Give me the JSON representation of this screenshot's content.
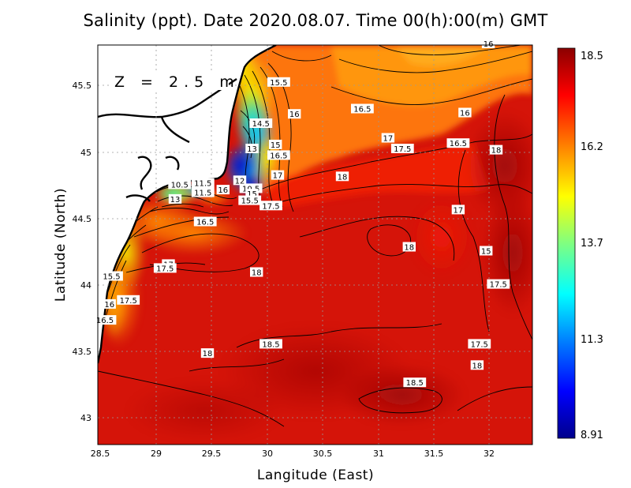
{
  "title": "Salinity (ppt). Date 2020.08.07. Time 00(h):00(m) GMT",
  "depth_label": "Z = 2.5 m",
  "x_axis": {
    "label": "Langitude (East)",
    "ticks": [
      "28.5",
      "29",
      "29.5",
      "30",
      "30.5",
      "31",
      "31.5",
      "32"
    ]
  },
  "y_axis": {
    "label": "Latitude (North)",
    "ticks": [
      "43",
      "43.5",
      "44",
      "44.5",
      "45",
      "45.5"
    ]
  },
  "colorbar": {
    "ticks": [
      "18.5",
      "16.2",
      "13.7",
      "11.3",
      "8.91"
    ],
    "min": 8.91,
    "max": 18.5,
    "colors": [
      "#00008b",
      "#0000ff",
      "#0080ff",
      "#00ffff",
      "#80ff80",
      "#ffff00",
      "#ff8000",
      "#ff0000",
      "#8b0000"
    ]
  },
  "contour_labels": [
    {
      "text": "16",
      "lon": 31.98,
      "lat": 45.82
    },
    {
      "text": "15.5",
      "lon": 30.1,
      "lat": 45.53
    },
    {
      "text": "16.5",
      "lon": 30.85,
      "lat": 45.33
    },
    {
      "text": "16",
      "lon": 31.77,
      "lat": 45.3
    },
    {
      "text": "16",
      "lon": 30.24,
      "lat": 45.29
    },
    {
      "text": "14.5",
      "lon": 29.94,
      "lat": 45.22
    },
    {
      "text": "17",
      "lon": 31.08,
      "lat": 45.11
    },
    {
      "text": "16.5",
      "lon": 31.71,
      "lat": 45.07
    },
    {
      "text": "15",
      "lon": 30.07,
      "lat": 45.06
    },
    {
      "text": "13",
      "lon": 29.86,
      "lat": 45.03
    },
    {
      "text": "17.5",
      "lon": 31.21,
      "lat": 45.03
    },
    {
      "text": "18",
      "lon": 32.05,
      "lat": 45.02
    },
    {
      "text": "16.5",
      "lon": 30.1,
      "lat": 44.98
    },
    {
      "text": "18",
      "lon": 30.67,
      "lat": 44.82
    },
    {
      "text": "17",
      "lon": 30.09,
      "lat": 44.83
    },
    {
      "text": "12",
      "lon": 29.75,
      "lat": 44.79
    },
    {
      "text": "10.5",
      "lon": 29.21,
      "lat": 44.76
    },
    {
      "text": "11.5",
      "lon": 29.42,
      "lat": 44.77
    },
    {
      "text": "10.5",
      "lon": 29.85,
      "lat": 44.73
    },
    {
      "text": "11.5",
      "lon": 29.42,
      "lat": 44.7
    },
    {
      "text": "16",
      "lon": 29.6,
      "lat": 44.72
    },
    {
      "text": "15",
      "lon": 29.86,
      "lat": 44.69
    },
    {
      "text": "13",
      "lon": 29.17,
      "lat": 44.65
    },
    {
      "text": "15.5",
      "lon": 29.84,
      "lat": 44.64
    },
    {
      "text": "17.5",
      "lon": 30.03,
      "lat": 44.6
    },
    {
      "text": "17",
      "lon": 31.71,
      "lat": 44.57
    },
    {
      "text": "16.5",
      "lon": 29.44,
      "lat": 44.48
    },
    {
      "text": "18",
      "lon": 31.27,
      "lat": 44.29
    },
    {
      "text": "15",
      "lon": 31.96,
      "lat": 44.26
    },
    {
      "text": "17",
      "lon": 29.11,
      "lat": 44.16
    },
    {
      "text": "17.5",
      "lon": 29.08,
      "lat": 44.13
    },
    {
      "text": "18",
      "lon": 29.9,
      "lat": 44.1
    },
    {
      "text": "15.5",
      "lon": 28.6,
      "lat": 44.07
    },
    {
      "text": "17.5",
      "lon": 32.07,
      "lat": 44.01
    },
    {
      "text": "17.5",
      "lon": 28.75,
      "lat": 43.89
    },
    {
      "text": "16",
      "lon": 28.58,
      "lat": 43.86
    },
    {
      "text": "16.5",
      "lon": 28.54,
      "lat": 43.74
    },
    {
      "text": "18.5",
      "lon": 30.03,
      "lat": 43.56
    },
    {
      "text": "17.5",
      "lon": 31.9,
      "lat": 43.56
    },
    {
      "text": "18",
      "lon": 29.46,
      "lat": 43.49
    },
    {
      "text": "18",
      "lon": 31.88,
      "lat": 43.4
    },
    {
      "text": "18.5",
      "lon": 31.32,
      "lat": 43.27
    }
  ]
}
